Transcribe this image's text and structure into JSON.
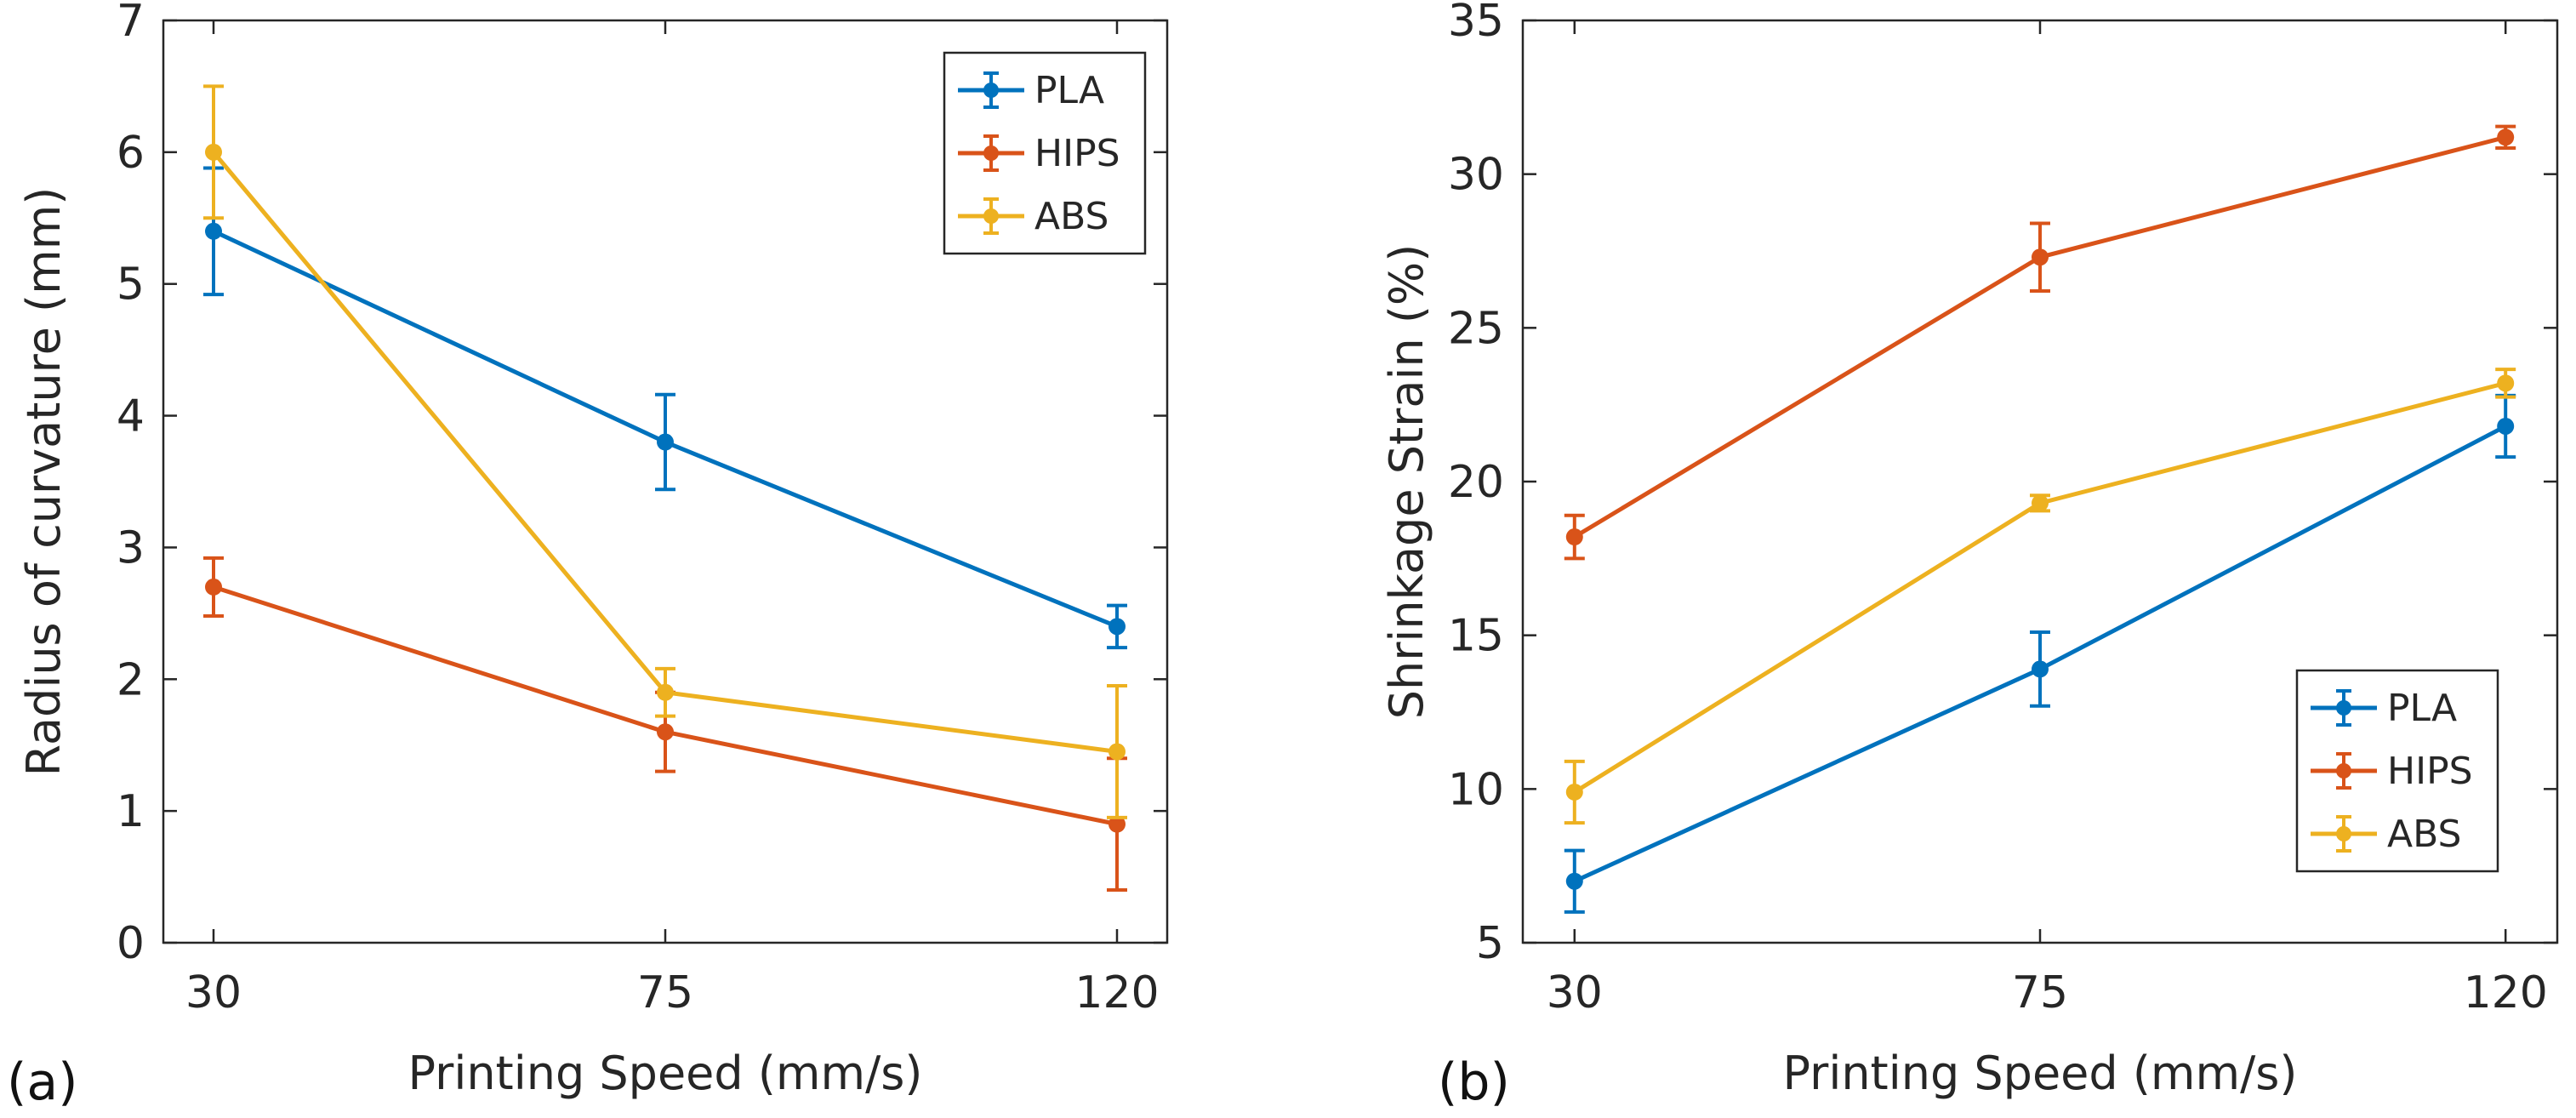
{
  "colors": {
    "PLA": "#0072BD",
    "HIPS": "#D95319",
    "ABS": "#EDB120"
  },
  "chart_data": [
    {
      "panel_label": "(a)",
      "type": "line",
      "xlabel": "Printing Speed (mm/s)",
      "ylabel": "Radius of curvature (mm)",
      "x": [
        30,
        75,
        120
      ],
      "x_tick_labels": [
        "30",
        "75",
        "120"
      ],
      "xlim": [
        25,
        125
      ],
      "ylim": [
        0,
        7
      ],
      "y_ticks": [
        0,
        1,
        2,
        3,
        4,
        5,
        6,
        7
      ],
      "y_tick_labels": [
        "0",
        "1",
        "2",
        "3",
        "4",
        "5",
        "6",
        "7"
      ],
      "legend_position": "top-right",
      "series": [
        {
          "name": "PLA",
          "values": [
            5.4,
            3.8,
            2.4
          ],
          "errors": [
            0.48,
            0.36,
            0.16
          ]
        },
        {
          "name": "HIPS",
          "values": [
            2.7,
            1.6,
            0.9
          ],
          "errors": [
            0.22,
            0.3,
            0.5
          ]
        },
        {
          "name": "ABS",
          "values": [
            6.0,
            1.9,
            1.45
          ],
          "errors": [
            0.5,
            0.18,
            0.5
          ]
        }
      ]
    },
    {
      "panel_label": "(b)",
      "type": "line",
      "xlabel": "Printing Speed (mm/s)",
      "ylabel": "Shrinkage Strain (%)",
      "x": [
        30,
        75,
        120
      ],
      "x_tick_labels": [
        "30",
        "75",
        "120"
      ],
      "xlim": [
        25,
        125
      ],
      "ylim": [
        5,
        35
      ],
      "y_ticks": [
        5,
        10,
        15,
        20,
        25,
        30,
        35
      ],
      "y_tick_labels": [
        "5",
        "10",
        "15",
        "20",
        "25",
        "30",
        "35"
      ],
      "legend_position": "bottom-right",
      "series": [
        {
          "name": "PLA",
          "values": [
            7.0,
            13.9,
            21.8
          ],
          "errors": [
            1.0,
            1.2,
            1.0
          ]
        },
        {
          "name": "HIPS",
          "values": [
            18.2,
            27.3,
            31.2
          ],
          "errors": [
            0.7,
            1.1,
            0.35
          ]
        },
        {
          "name": "ABS",
          "values": [
            9.9,
            19.3,
            23.2
          ],
          "errors": [
            1.0,
            0.25,
            0.45
          ]
        }
      ]
    }
  ]
}
